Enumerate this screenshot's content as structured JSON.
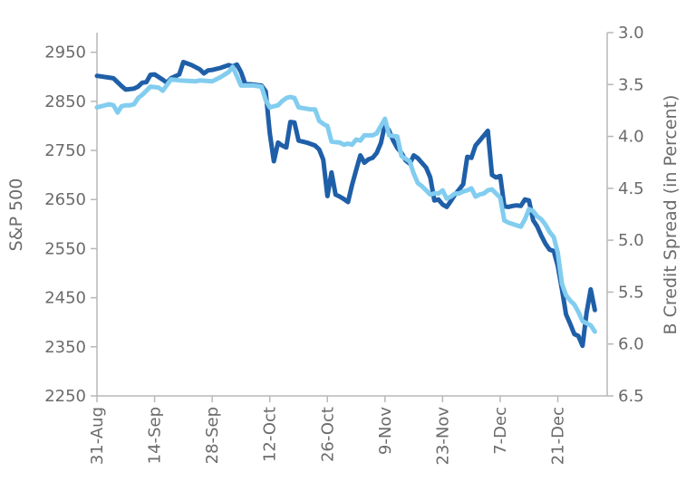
{
  "chart_data": {
    "type": "line",
    "title": "",
    "ylabel_left": "S&P 500",
    "ylabel_right": "B Credit Spread (in Percent)",
    "xlabel": "",
    "x_tick_labels": [
      "31-Aug",
      "14-Sep",
      "28-Sep",
      "12-Oct",
      "26-Oct",
      "9-Nov",
      "23-Nov",
      "7-Dec",
      "21-Dec"
    ],
    "y_left_ticks": [
      "2950",
      "2850",
      "2750",
      "2650",
      "2550",
      "2450",
      "2350",
      "2250"
    ],
    "y_right_ticks": [
      "3.0",
      "3.5",
      "4.0",
      "4.5",
      "5.0",
      "5.5",
      "6.0",
      "6.5"
    ],
    "y_left_range": [
      2250,
      2990
    ],
    "y_right_range": [
      3.0,
      6.5
    ],
    "y_right_inverted": true,
    "x_range_days": [
      0,
      124
    ],
    "grid": false,
    "legend": "none",
    "series": [
      {
        "axis": "left",
        "color": "#1f5fa8",
        "points": [
          [
            0,
            2902
          ],
          [
            4,
            2897
          ],
          [
            6,
            2881
          ],
          [
            7,
            2874
          ],
          [
            9,
            2876
          ],
          [
            10,
            2880
          ],
          [
            11,
            2888
          ],
          [
            12,
            2889
          ],
          [
            13,
            2904
          ],
          [
            14,
            2905
          ],
          [
            16,
            2894
          ],
          [
            17,
            2888
          ],
          [
            18,
            2897
          ],
          [
            20,
            2905
          ],
          [
            21,
            2930
          ],
          [
            23,
            2924
          ],
          [
            25,
            2915
          ],
          [
            26,
            2907
          ],
          [
            27,
            2913
          ],
          [
            28,
            2914
          ],
          [
            30,
            2918
          ],
          [
            32,
            2924
          ],
          [
            33,
            2921
          ],
          [
            34,
            2925
          ],
          [
            35,
            2910
          ],
          [
            36,
            2886
          ],
          [
            38,
            2884
          ],
          [
            39,
            2883
          ],
          [
            40,
            2882
          ],
          [
            41,
            2870
          ],
          [
            42,
            2785
          ],
          [
            43,
            2728
          ],
          [
            44,
            2766
          ],
          [
            45,
            2760
          ],
          [
            46,
            2756
          ],
          [
            47,
            2808
          ],
          [
            48,
            2807
          ],
          [
            49,
            2770
          ],
          [
            51,
            2766
          ],
          [
            52,
            2763
          ],
          [
            53,
            2760
          ],
          [
            54,
            2752
          ],
          [
            55,
            2731
          ],
          [
            56,
            2657
          ],
          [
            57,
            2705
          ],
          [
            58,
            2660
          ],
          [
            59,
            2656
          ],
          [
            60,
            2651
          ],
          [
            61,
            2645
          ],
          [
            62,
            2680
          ],
          [
            63,
            2710
          ],
          [
            64,
            2740
          ],
          [
            65,
            2725
          ],
          [
            66,
            2732
          ],
          [
            67,
            2735
          ],
          [
            68,
            2745
          ],
          [
            69,
            2765
          ],
          [
            70,
            2803
          ],
          [
            71,
            2790
          ],
          [
            72,
            2770
          ],
          [
            73,
            2755
          ],
          [
            74,
            2745
          ],
          [
            75,
            2730
          ],
          [
            76,
            2723
          ],
          [
            77,
            2740
          ],
          [
            78,
            2734
          ],
          [
            80,
            2715
          ],
          [
            81,
            2695
          ],
          [
            82,
            2648
          ],
          [
            83,
            2650
          ],
          [
            84,
            2640
          ],
          [
            85,
            2635
          ],
          [
            86,
            2647
          ],
          [
            87,
            2660
          ],
          [
            88,
            2670
          ],
          [
            89,
            2681
          ],
          [
            90,
            2737
          ],
          [
            91,
            2735
          ],
          [
            92,
            2760
          ],
          [
            93,
            2770
          ],
          [
            94,
            2780
          ],
          [
            95,
            2790
          ],
          [
            96,
            2700
          ],
          [
            97,
            2695
          ],
          [
            98,
            2698
          ],
          [
            99,
            2636
          ],
          [
            100,
            2635
          ],
          [
            101,
            2637
          ],
          [
            102,
            2638
          ],
          [
            103,
            2637
          ],
          [
            104,
            2650
          ],
          [
            105,
            2648
          ],
          [
            106,
            2608
          ],
          [
            107,
            2595
          ],
          [
            108,
            2576
          ],
          [
            109,
            2560
          ],
          [
            110,
            2548
          ],
          [
            111,
            2545
          ],
          [
            112,
            2515
          ],
          [
            113,
            2467
          ],
          [
            114,
            2416
          ],
          [
            115,
            2397
          ],
          [
            116,
            2376
          ],
          [
            117,
            2372
          ],
          [
            118,
            2352
          ],
          [
            119,
            2420
          ],
          [
            120,
            2467
          ],
          [
            121,
            2425
          ]
        ]
      },
      {
        "axis": "right",
        "color": "#82cdef",
        "points": [
          [
            0,
            3.72
          ],
          [
            3,
            3.69
          ],
          [
            4,
            3.7
          ],
          [
            5,
            3.77
          ],
          [
            6,
            3.71
          ],
          [
            7,
            3.7
          ],
          [
            8,
            3.7
          ],
          [
            9,
            3.69
          ],
          [
            10,
            3.63
          ],
          [
            11,
            3.6
          ],
          [
            12,
            3.56
          ],
          [
            13,
            3.52
          ],
          [
            15,
            3.53
          ],
          [
            16,
            3.56
          ],
          [
            18,
            3.45
          ],
          [
            20,
            3.46
          ],
          [
            24,
            3.47
          ],
          [
            25,
            3.46
          ],
          [
            28,
            3.47
          ],
          [
            30,
            3.43
          ],
          [
            32,
            3.38
          ],
          [
            33,
            3.33
          ],
          [
            35,
            3.51
          ],
          [
            36,
            3.51
          ],
          [
            38,
            3.51
          ],
          [
            40,
            3.52
          ],
          [
            41,
            3.65
          ],
          [
            42,
            3.72
          ],
          [
            44,
            3.7
          ],
          [
            45,
            3.66
          ],
          [
            46,
            3.63
          ],
          [
            47,
            3.62
          ],
          [
            48,
            3.63
          ],
          [
            49,
            3.72
          ],
          [
            52,
            3.74
          ],
          [
            53,
            3.74
          ],
          [
            54,
            3.85
          ],
          [
            55,
            3.88
          ],
          [
            56,
            3.9
          ],
          [
            57,
            4.05
          ],
          [
            59,
            4.06
          ],
          [
            60,
            4.08
          ],
          [
            61,
            4.07
          ],
          [
            62,
            4.08
          ],
          [
            63,
            4.03
          ],
          [
            64,
            4.04
          ],
          [
            65,
            3.99
          ],
          [
            66,
            3.99
          ],
          [
            67,
            3.99
          ],
          [
            68,
            3.97
          ],
          [
            70,
            3.83
          ],
          [
            71,
            3.99
          ],
          [
            73,
            4.0
          ],
          [
            74,
            4.19
          ],
          [
            76,
            4.24
          ],
          [
            77,
            4.36
          ],
          [
            78,
            4.45
          ],
          [
            79,
            4.48
          ],
          [
            80,
            4.52
          ],
          [
            81,
            4.56
          ],
          [
            82,
            4.55
          ],
          [
            83,
            4.55
          ],
          [
            84,
            4.52
          ],
          [
            85,
            4.6
          ],
          [
            86,
            4.58
          ],
          [
            87,
            4.55
          ],
          [
            88,
            4.55
          ],
          [
            89,
            4.53
          ],
          [
            90,
            4.52
          ],
          [
            91,
            4.5
          ],
          [
            92,
            4.58
          ],
          [
            93,
            4.56
          ],
          [
            94,
            4.55
          ],
          [
            95,
            4.52
          ],
          [
            96,
            4.51
          ],
          [
            97,
            4.55
          ],
          [
            98,
            4.59
          ],
          [
            99,
            4.81
          ],
          [
            100,
            4.83
          ],
          [
            103,
            4.87
          ],
          [
            104,
            4.8
          ],
          [
            105,
            4.7
          ],
          [
            106,
            4.72
          ],
          [
            107,
            4.77
          ],
          [
            108,
            4.8
          ],
          [
            109,
            4.85
          ],
          [
            110,
            4.92
          ],
          [
            111,
            4.97
          ],
          [
            112,
            5.12
          ],
          [
            113,
            5.42
          ],
          [
            114,
            5.53
          ],
          [
            115,
            5.58
          ],
          [
            116,
            5.62
          ],
          [
            117,
            5.69
          ],
          [
            118,
            5.78
          ],
          [
            120,
            5.82
          ],
          [
            121,
            5.88
          ]
        ]
      }
    ]
  }
}
